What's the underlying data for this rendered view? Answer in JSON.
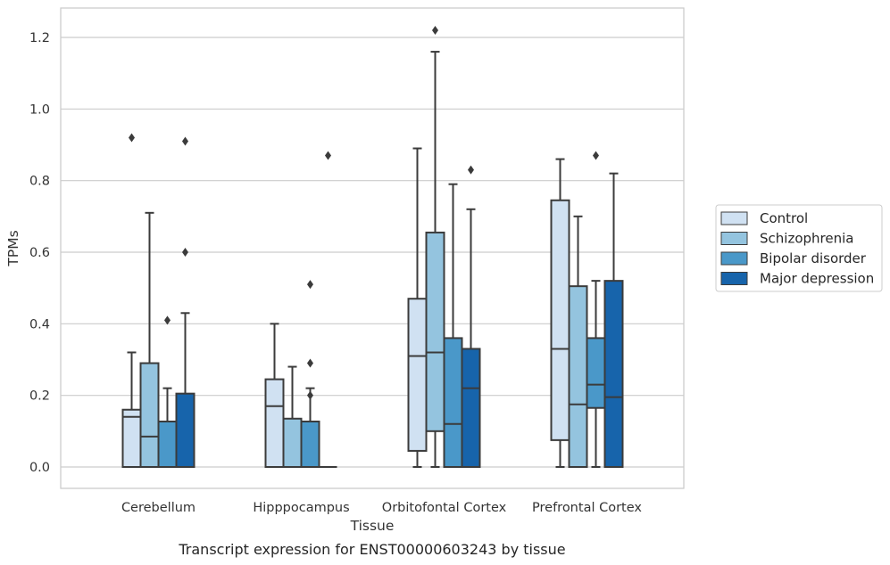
{
  "chart_data": {
    "type": "box",
    "xlabel": "Tissue",
    "ylabel": "TPMs",
    "caption": "Transcript expression for ENST00000603243 by tissue",
    "ylim": [
      -0.06,
      1.28
    ],
    "yticks": [
      "0.0",
      "0.2",
      "0.4",
      "0.6",
      "0.8",
      "1.0",
      "1.2"
    ],
    "grid": "horizontal",
    "legend_position": "right",
    "categories": [
      "Cerebellum",
      "Hipppocampus",
      "Orbitofontal Cortex",
      "Prefrontal Cortex"
    ],
    "series": [
      {
        "name": "Control",
        "color": "#d0e1f2",
        "boxes": [
          {
            "low": 0.0,
            "q1": 0.0,
            "median": 0.14,
            "q3": 0.16,
            "high": 0.32,
            "outliers": [
              0.92
            ]
          },
          {
            "low": 0.0,
            "q1": 0.0,
            "median": 0.17,
            "q3": 0.245,
            "high": 0.4,
            "outliers": []
          },
          {
            "low": 0.0,
            "q1": 0.045,
            "median": 0.31,
            "q3": 0.47,
            "high": 0.89,
            "outliers": []
          },
          {
            "low": 0.0,
            "q1": 0.075,
            "median": 0.33,
            "q3": 0.745,
            "high": 0.86,
            "outliers": []
          }
        ]
      },
      {
        "name": "Schizophrenia",
        "color": "#94c4df",
        "boxes": [
          {
            "low": 0.0,
            "q1": 0.0,
            "median": 0.085,
            "q3": 0.29,
            "high": 0.71,
            "outliers": []
          },
          {
            "low": 0.0,
            "q1": 0.0,
            "median": 0.0,
            "q3": 0.135,
            "high": 0.28,
            "outliers": []
          },
          {
            "low": 0.0,
            "q1": 0.1,
            "median": 0.32,
            "q3": 0.655,
            "high": 1.16,
            "outliers": [
              1.22
            ]
          },
          {
            "low": 0.0,
            "q1": 0.0,
            "median": 0.175,
            "q3": 0.505,
            "high": 0.7,
            "outliers": []
          }
        ]
      },
      {
        "name": "Bipolar disorder",
        "color": "#4a98c9",
        "boxes": [
          {
            "low": 0.0,
            "q1": 0.0,
            "median": 0.0,
            "q3": 0.127,
            "high": 0.22,
            "outliers": [
              0.41
            ]
          },
          {
            "low": 0.0,
            "q1": 0.0,
            "median": 0.0,
            "q3": 0.127,
            "high": 0.22,
            "outliers": [
              0.51,
              0.29,
              0.2
            ]
          },
          {
            "low": 0.0,
            "q1": 0.0,
            "median": 0.12,
            "q3": 0.36,
            "high": 0.79,
            "outliers": []
          },
          {
            "low": 0.0,
            "q1": 0.165,
            "median": 0.23,
            "q3": 0.36,
            "high": 0.52,
            "outliers": [
              0.87
            ]
          }
        ]
      },
      {
        "name": "Major depression",
        "color": "#1764ab",
        "boxes": [
          {
            "low": 0.0,
            "q1": 0.0,
            "median": 0.0,
            "q3": 0.205,
            "high": 0.43,
            "outliers": [
              0.91,
              0.6
            ]
          },
          {
            "low": 0.0,
            "q1": 0.0,
            "median": 0.0,
            "q3": 0.0,
            "high": 0.0,
            "outliers": [
              0.87
            ]
          },
          {
            "low": 0.0,
            "q1": 0.0,
            "median": 0.22,
            "q3": 0.33,
            "high": 0.72,
            "outliers": [
              0.83
            ]
          },
          {
            "low": 0.0,
            "q1": 0.0,
            "median": 0.195,
            "q3": 0.52,
            "high": 0.82,
            "outliers": []
          }
        ]
      }
    ]
  }
}
